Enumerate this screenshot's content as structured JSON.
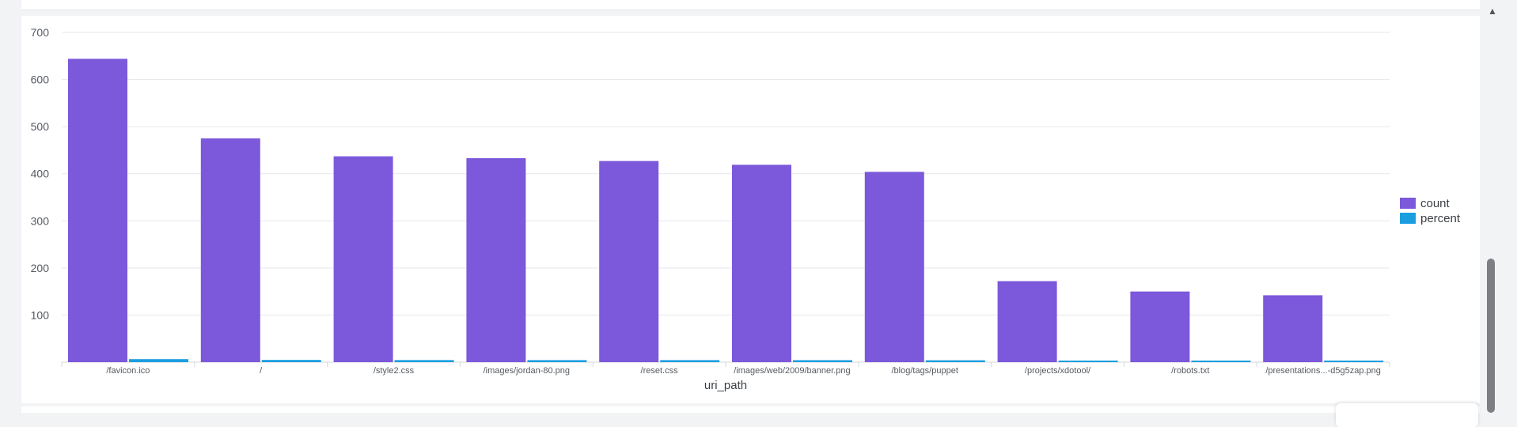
{
  "chart_data": {
    "type": "bar",
    "xlabel": "uri_path",
    "ylabel": "",
    "ylim": [
      0,
      700
    ],
    "yticks": [
      100,
      200,
      300,
      400,
      500,
      600,
      700
    ],
    "grid": true,
    "legend_position": "right",
    "categories": [
      "/favicon.ico",
      "/",
      "/style2.css",
      "/images/jordan-80.png",
      "/reset.css",
      "/images/web/2009/banner.png",
      "/blog/tags/puppet",
      "/projects/xdotool/",
      "/robots.txt",
      "/presentations...-d5g5zap.png"
    ],
    "series": [
      {
        "name": "count",
        "color": "#7c58db",
        "values": [
          644,
          475,
          437,
          433,
          427,
          419,
          404,
          172,
          150,
          142
        ]
      },
      {
        "name": "percent",
        "color": "#1a9ee0",
        "values": [
          6.4,
          4.7,
          4.4,
          4.3,
          4.3,
          4.2,
          4.0,
          1.7,
          1.5,
          1.4
        ]
      }
    ]
  }
}
